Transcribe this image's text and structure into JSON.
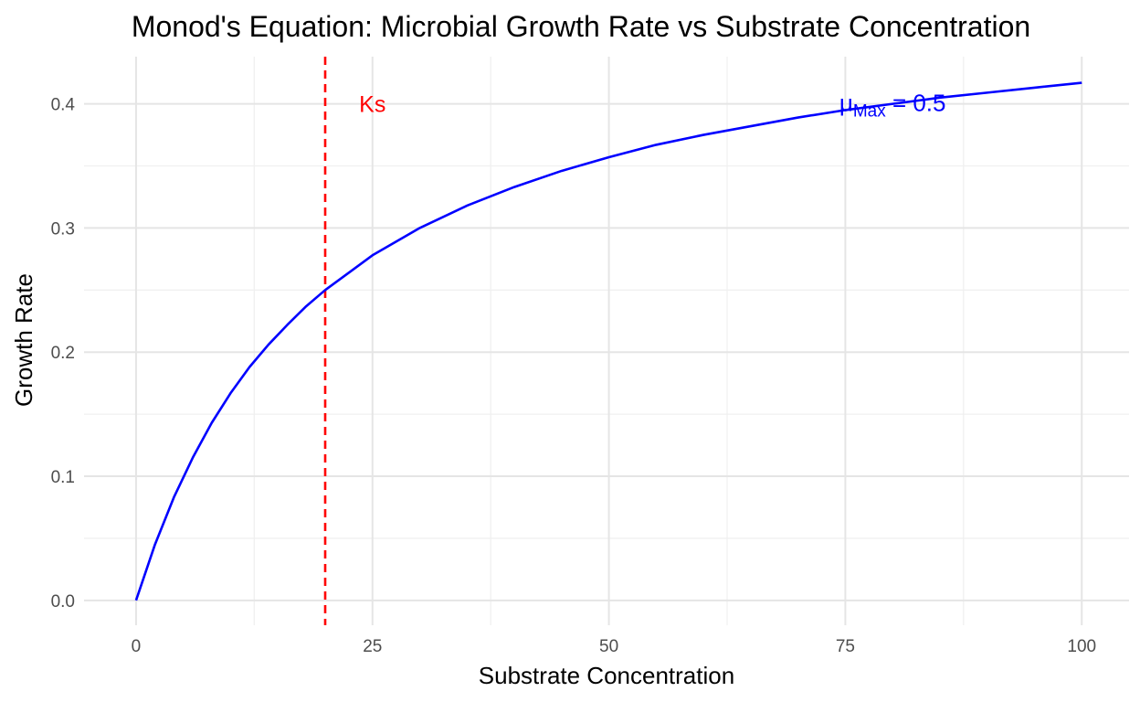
{
  "chart_data": {
    "type": "line",
    "title": "Monod's Equation: Microbial Growth Rate vs Substrate Concentration",
    "xlabel": "Substrate Concentration",
    "ylabel": "Growth Rate",
    "xlim": [
      -5.5,
      105
    ],
    "ylim": [
      -0.02,
      0.438
    ],
    "x_ticks": [
      0,
      25,
      50,
      75,
      100
    ],
    "x_tick_labels": [
      "0",
      "25",
      "50",
      "75",
      "100"
    ],
    "y_ticks": [
      0.0,
      0.1,
      0.2,
      0.3,
      0.4
    ],
    "y_tick_labels": [
      "0.0",
      "0.1",
      "0.2",
      "0.3",
      "0.4"
    ],
    "grid": true,
    "legend": "none",
    "series": [
      {
        "color": "#0000ff",
        "x": [
          0,
          2,
          4,
          6,
          8,
          10,
          12,
          14,
          16,
          18,
          20,
          25,
          30,
          35,
          40,
          45,
          50,
          55,
          60,
          65,
          70,
          75,
          80,
          85,
          90,
          95,
          100
        ],
        "y": [
          0.0,
          0.045,
          0.083,
          0.115,
          0.143,
          0.167,
          0.188,
          0.206,
          0.222,
          0.237,
          0.25,
          0.278,
          0.3,
          0.318,
          0.333,
          0.346,
          0.357,
          0.367,
          0.375,
          0.382,
          0.389,
          0.395,
          0.4,
          0.405,
          0.409,
          0.413,
          0.417
        ]
      }
    ],
    "vline": {
      "x": 20,
      "color": "#ff0000",
      "style": "dashed"
    },
    "annotations": [
      {
        "id": "ks",
        "text": "Ks",
        "x": 25,
        "y": 0.4,
        "color": "#ff0000"
      },
      {
        "id": "mu",
        "text": "μ",
        "subscript": "Max",
        "suffix": " = 0.5",
        "x": 80,
        "y": 0.4,
        "color": "#0000ff"
      }
    ]
  }
}
